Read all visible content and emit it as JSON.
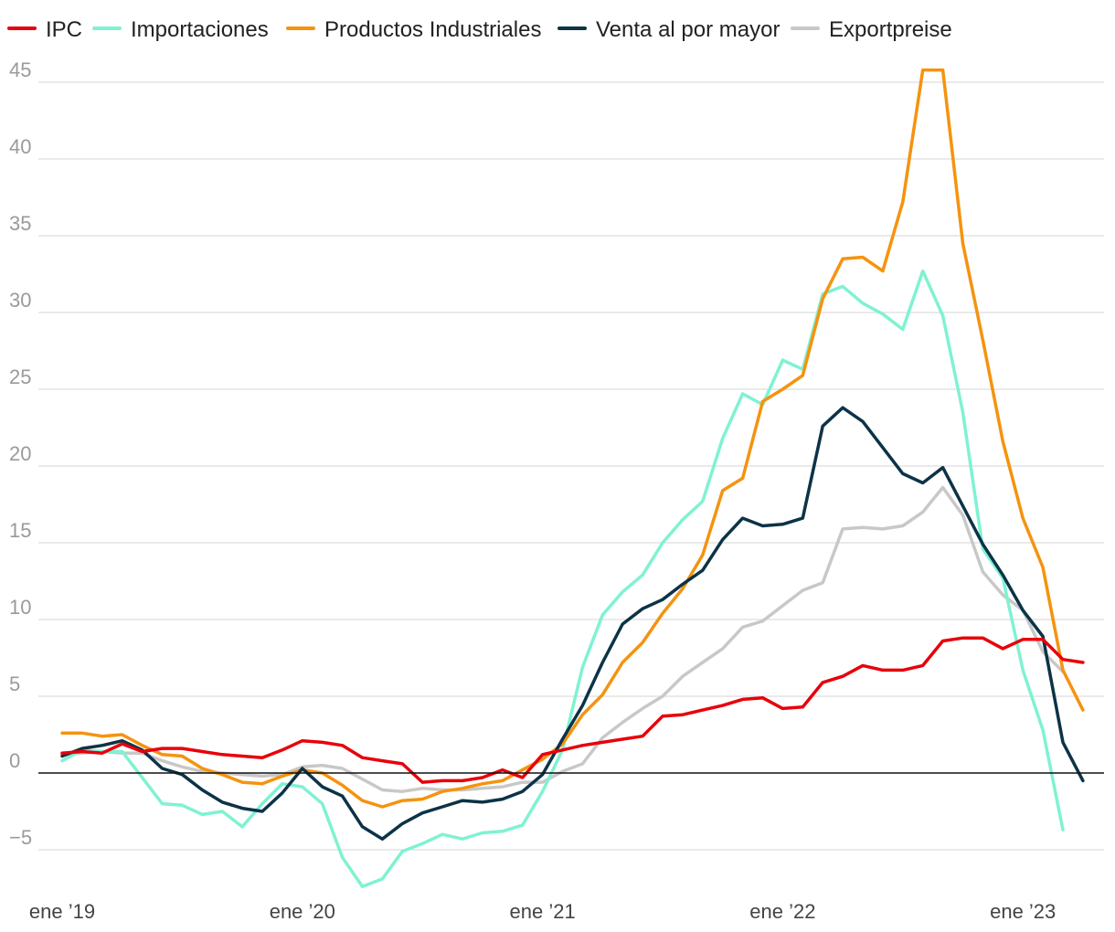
{
  "chart_data": {
    "type": "line",
    "title": "",
    "xlabel": "",
    "ylabel": "",
    "ylim": [
      -7.5,
      47
    ],
    "yticks": [
      -5,
      0,
      5,
      10,
      15,
      20,
      25,
      30,
      35,
      40,
      45
    ],
    "ytick_labels": [
      "−5",
      "0",
      "5",
      "10",
      "15",
      "20",
      "25",
      "30",
      "35",
      "40",
      "45"
    ],
    "xlim": [
      0,
      51
    ],
    "xticks": [
      {
        "label": "ene ’19",
        "x": 0
      },
      {
        "label": "ene ’20",
        "x": 12
      },
      {
        "label": "ene ’21",
        "x": 24
      },
      {
        "label": "ene ’22",
        "x": 36
      },
      {
        "label": "ene ’23",
        "x": 48
      }
    ],
    "grid": true,
    "legend_position": "top-left",
    "series": [
      {
        "name": "Exportpreise",
        "color": "#c8c8c8",
        "values": [
          1.2,
          1.3,
          1.4,
          1.3,
          1.3,
          0.8,
          0.4,
          0.1,
          0.0,
          -0.1,
          -0.2,
          -0.1,
          0.4,
          0.5,
          0.3,
          -0.4,
          -1.1,
          -1.2,
          -1.0,
          -1.1,
          -1.1,
          -1.0,
          -0.9,
          -0.6,
          -0.6,
          0.1,
          0.6,
          2.3,
          3.3,
          4.2,
          5.0,
          6.3,
          7.2,
          8.1,
          9.5,
          9.9,
          10.9,
          11.9,
          12.4,
          15.9,
          16.0,
          15.9,
          16.1,
          17.0,
          18.6,
          16.8,
          13.1,
          11.6,
          10.6,
          7.9,
          6.6,
          null
        ]
      },
      {
        "name": "Importaciones",
        "color": "#7ff2d2",
        "values": [
          0.8,
          1.5,
          1.4,
          1.4,
          -0.3,
          -2.0,
          -2.1,
          -2.7,
          -2.5,
          -3.5,
          -2.0,
          -0.7,
          -0.9,
          -2.0,
          -5.5,
          -7.4,
          -6.9,
          -5.1,
          -4.6,
          -4.0,
          -4.3,
          -3.9,
          -3.8,
          -3.4,
          -1.2,
          1.5,
          6.9,
          10.3,
          11.8,
          12.9,
          15.0,
          16.5,
          17.7,
          21.8,
          24.7,
          24.0,
          26.9,
          26.3,
          31.2,
          31.7,
          30.6,
          29.9,
          28.9,
          32.7,
          29.8,
          23.5,
          14.6,
          12.7,
          6.7,
          2.8,
          -3.7,
          null
        ]
      },
      {
        "name": "Productos Industriales",
        "color": "#f5930f",
        "values": [
          2.6,
          2.6,
          2.4,
          2.5,
          1.8,
          1.2,
          1.1,
          0.3,
          -0.1,
          -0.6,
          -0.7,
          -0.2,
          0.2,
          0.0,
          -0.8,
          -1.8,
          -2.2,
          -1.8,
          -1.7,
          -1.2,
          -1.0,
          -0.7,
          -0.5,
          0.2,
          0.9,
          1.9,
          3.8,
          5.1,
          7.2,
          8.5,
          10.4,
          12.0,
          14.2,
          18.4,
          19.2,
          24.2,
          25.0,
          25.9,
          30.9,
          33.5,
          33.6,
          32.7,
          37.2,
          45.8,
          45.8,
          34.5,
          28.2,
          21.6,
          16.6,
          13.4,
          6.7,
          4.1
        ]
      },
      {
        "name": "Venta al por mayor",
        "color": "#0c3347",
        "values": [
          1.1,
          1.6,
          1.8,
          2.1,
          1.5,
          0.3,
          -0.1,
          -1.1,
          -1.9,
          -2.3,
          -2.5,
          -1.3,
          0.3,
          -0.9,
          -1.5,
          -3.5,
          -4.3,
          -3.3,
          -2.6,
          -2.2,
          -1.8,
          -1.9,
          -1.7,
          -1.2,
          -0.1,
          2.2,
          4.4,
          7.2,
          9.7,
          10.7,
          11.3,
          12.3,
          13.2,
          15.2,
          16.6,
          16.1,
          16.2,
          16.6,
          22.6,
          23.8,
          22.9,
          21.2,
          19.5,
          18.9,
          19.9,
          17.4,
          14.9,
          12.9,
          10.6,
          8.9,
          2.0,
          -0.5
        ]
      },
      {
        "name": "IPC",
        "color": "#e8000b",
        "values": [
          1.3,
          1.4,
          1.3,
          1.9,
          1.4,
          1.6,
          1.6,
          1.4,
          1.2,
          1.1,
          1.0,
          1.5,
          2.1,
          2.0,
          1.8,
          1.0,
          0.8,
          0.6,
          -0.6,
          -0.5,
          -0.5,
          -0.3,
          0.2,
          -0.3,
          1.2,
          1.5,
          1.8,
          2.0,
          2.2,
          2.4,
          3.7,
          3.8,
          4.1,
          4.4,
          4.8,
          4.9,
          4.2,
          4.3,
          5.9,
          6.3,
          7.0,
          6.7,
          6.7,
          7.0,
          8.6,
          8.8,
          8.8,
          8.1,
          8.7,
          8.7,
          7.4,
          7.2
        ]
      }
    ]
  },
  "legend": {
    "items": [
      {
        "label": "IPC",
        "color": "#e8000b"
      },
      {
        "label": "Importaciones",
        "color": "#7ff2d2"
      },
      {
        "label": "Productos Industriales",
        "color": "#f5930f"
      },
      {
        "label": "Venta al por mayor",
        "color": "#0c3347"
      },
      {
        "label": "Exportpreise",
        "color": "#c8c8c8"
      }
    ]
  }
}
